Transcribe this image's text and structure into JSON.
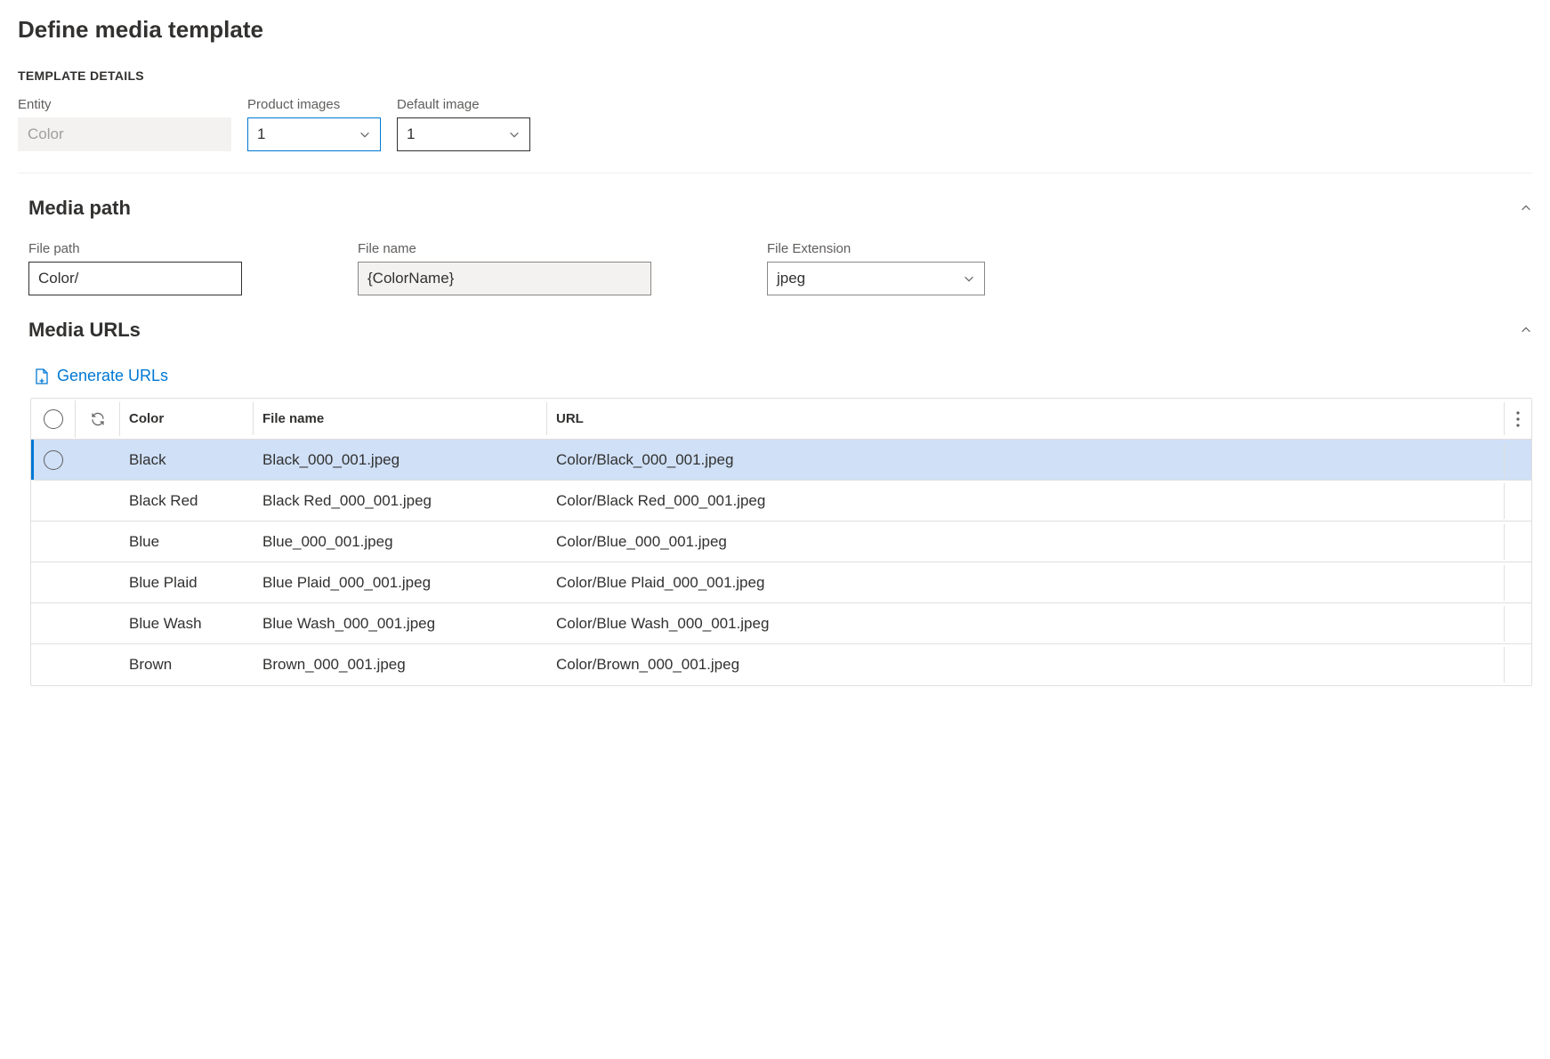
{
  "page": {
    "title": "Define media template",
    "details_label": "TEMPLATE DETAILS"
  },
  "details": {
    "entity_label": "Entity",
    "entity_value": "Color",
    "product_images_label": "Product images",
    "product_images_value": "1",
    "default_image_label": "Default image",
    "default_image_value": "1"
  },
  "media_path": {
    "title": "Media path",
    "file_path_label": "File path",
    "file_path_value": "Color/",
    "file_name_label": "File name",
    "file_name_value": "{ColorName}",
    "file_ext_label": "File Extension",
    "file_ext_value": "jpeg"
  },
  "media_urls": {
    "title": "Media URLs",
    "generate_label": "Generate URLs",
    "columns": {
      "color": "Color",
      "file_name": "File name",
      "url": "URL"
    },
    "rows": [
      {
        "color": "Black",
        "file": "Black_000_001.jpeg",
        "url": "Color/Black_000_001.jpeg",
        "selected": true
      },
      {
        "color": "Black Red",
        "file": "Black Red_000_001.jpeg",
        "url": "Color/Black Red_000_001.jpeg",
        "selected": false
      },
      {
        "color": "Blue",
        "file": "Blue_000_001.jpeg",
        "url": "Color/Blue_000_001.jpeg",
        "selected": false
      },
      {
        "color": "Blue Plaid",
        "file": "Blue Plaid_000_001.jpeg",
        "url": "Color/Blue Plaid_000_001.jpeg",
        "selected": false
      },
      {
        "color": "Blue Wash",
        "file": "Blue Wash_000_001.jpeg",
        "url": "Color/Blue Wash_000_001.jpeg",
        "selected": false
      },
      {
        "color": "Brown",
        "file": "Brown_000_001.jpeg",
        "url": "Color/Brown_000_001.jpeg",
        "selected": false
      }
    ]
  },
  "colors": {
    "accent": "#0078d4",
    "row_selected": "#cfe0f7",
    "border": "#e1dfdd",
    "text": "#323130",
    "text_muted": "#605e5c",
    "disabled_bg": "#f3f2f1"
  }
}
